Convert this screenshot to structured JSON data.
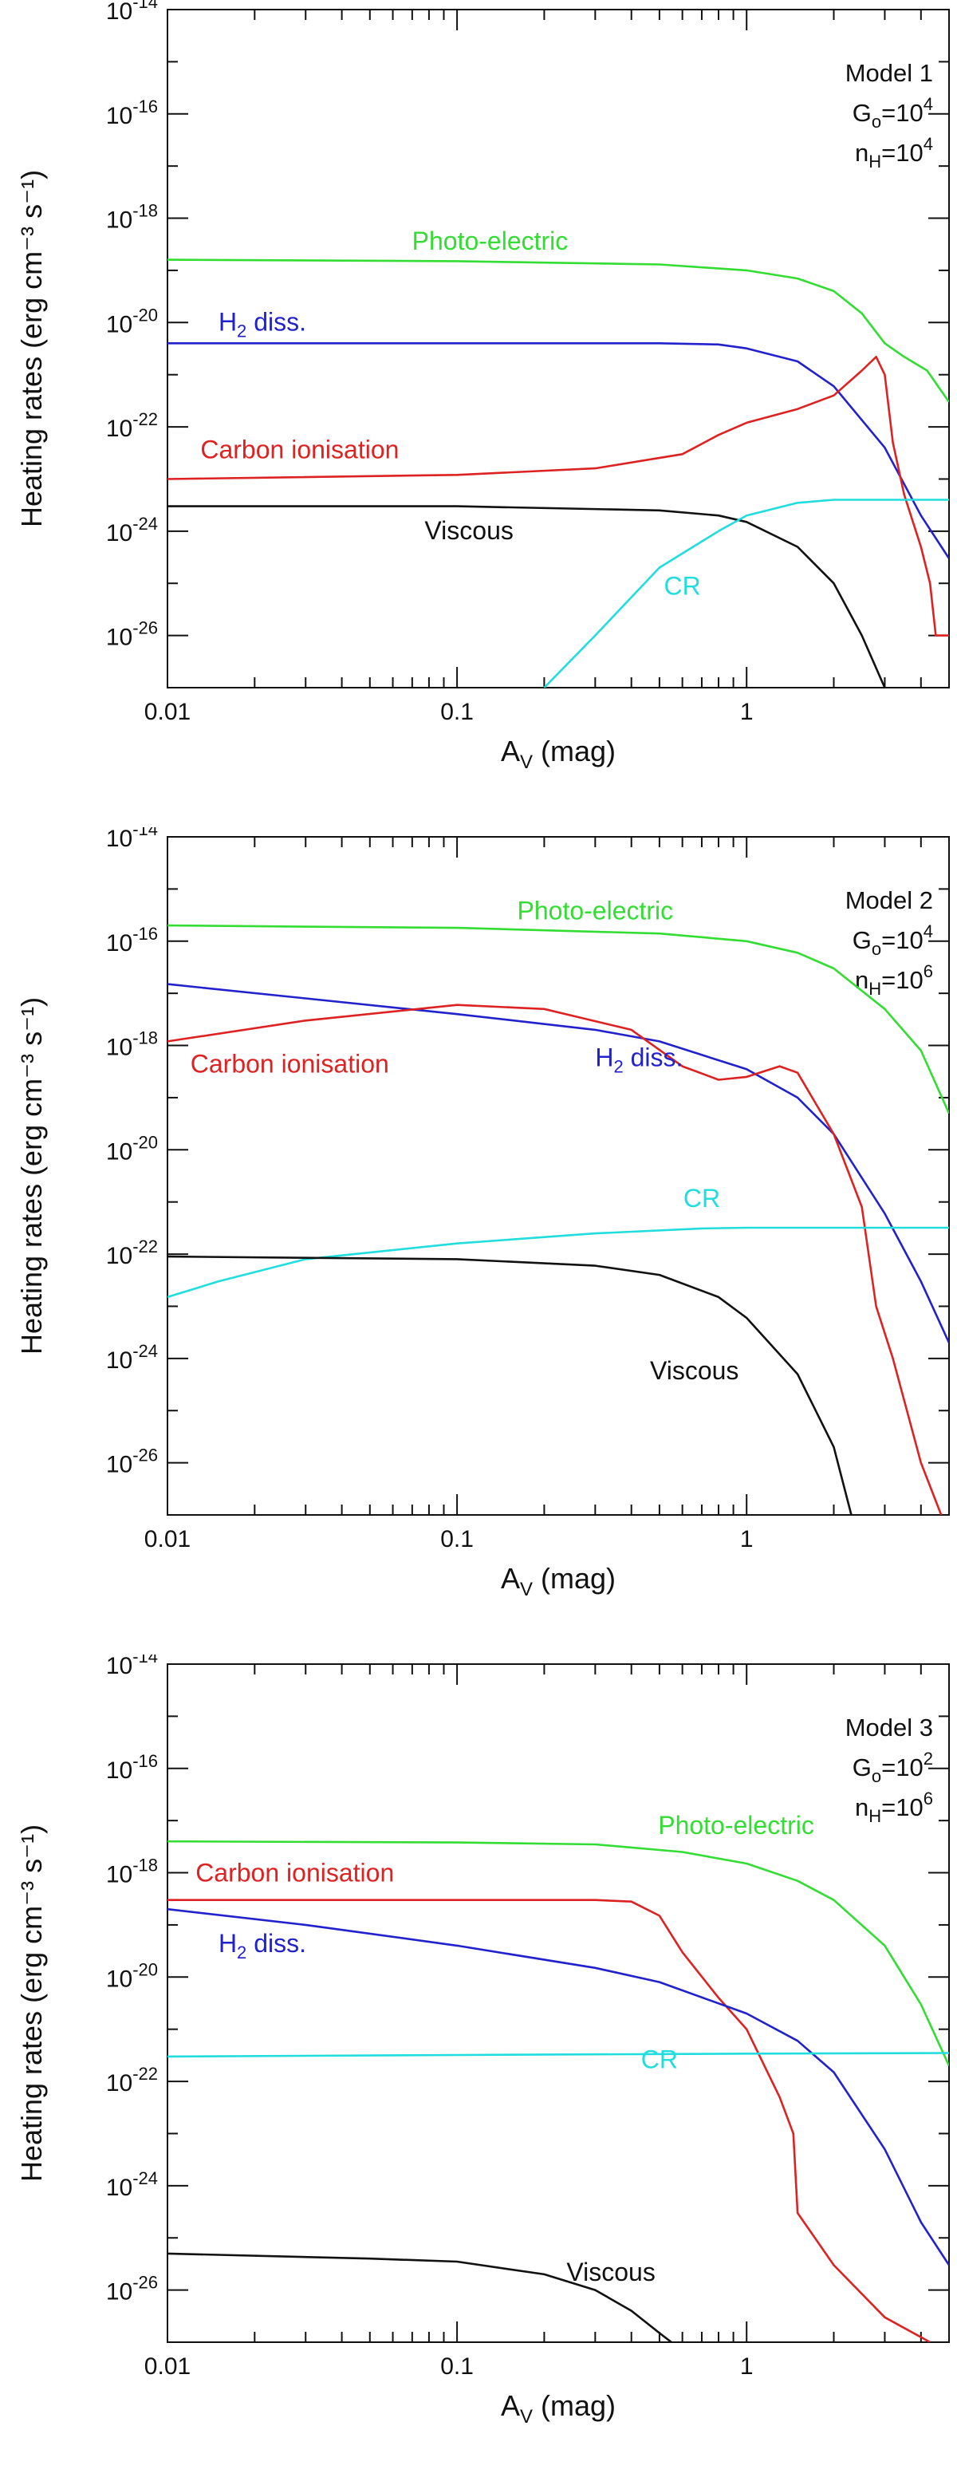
{
  "chart_data": [
    {
      "type": "line",
      "panel": "Model 1",
      "model_label": {
        "name": "Model 1",
        "G_base": "G",
        "G_sub": "o",
        "G_exp": "4",
        "n_base": "n",
        "n_sub": "H",
        "n_exp": "4"
      },
      "xlabel": {
        "base": "A",
        "sub": "V",
        "suffix": " (mag)"
      },
      "ylabel": "Heating rates (erg cm⁻³ s⁻¹)",
      "xscale": "log",
      "yscale": "log",
      "xlim": [
        0.01,
        5
      ],
      "ylim": [
        1e-27,
        1e-14
      ],
      "xticks": [
        {
          "v": 0.01,
          "label": "0.01"
        },
        {
          "v": 0.1,
          "label": "0.1"
        },
        {
          "v": 1,
          "label": "1"
        }
      ],
      "yticks_exp": [
        -14,
        -16,
        -18,
        -20,
        -22,
        -24,
        -26
      ],
      "tick_base": "10",
      "series": [
        {
          "name": "Photo-electric",
          "color": "#33dd33",
          "points": [
            [
              0.01,
              1.6e-19
            ],
            [
              0.1,
              1.5e-19
            ],
            [
              0.5,
              1.3e-19
            ],
            [
              1,
              1e-19
            ],
            [
              1.5,
              7e-20
            ],
            [
              2,
              4e-20
            ],
            [
              2.5,
              1.5e-20
            ],
            [
              3,
              4e-21
            ],
            [
              3.5,
              2.2e-21
            ],
            [
              4.2,
              1.2e-21
            ],
            [
              5,
              3e-22
            ]
          ],
          "label": {
            "text": "Photo-electric",
            "x": 0.13,
            "y": 2.5e-19,
            "anchor": "middle"
          }
        },
        {
          "name": "H2 diss.",
          "color": "#2222cc",
          "points": [
            [
              0.01,
              4e-21
            ],
            [
              0.5,
              4e-21
            ],
            [
              0.8,
              3.8e-21
            ],
            [
              1,
              3.2e-21
            ],
            [
              1.5,
              1.8e-21
            ],
            [
              2,
              6e-22
            ],
            [
              3,
              4e-23
            ],
            [
              4,
              2e-24
            ],
            [
              5,
              3e-25
            ]
          ],
          "label": {
            "text": "H2 diss.",
            "base": "H",
            "sub": "2",
            "suffix": " diss.",
            "x": 0.015,
            "y": 7e-21,
            "anchor": "start"
          }
        },
        {
          "name": "Carbon ionisation",
          "color": "#dd2222",
          "points": [
            [
              0.01,
              1e-23
            ],
            [
              0.1,
              1.2e-23
            ],
            [
              0.3,
              1.6e-23
            ],
            [
              0.6,
              3e-23
            ],
            [
              0.8,
              7e-23
            ],
            [
              1,
              1.2e-22
            ],
            [
              1.5,
              2.2e-22
            ],
            [
              2,
              4e-22
            ],
            [
              2.5,
              1.2e-21
            ],
            [
              2.8,
              2.2e-21
            ],
            [
              3.0,
              1e-21
            ],
            [
              3.2,
              5e-23
            ],
            [
              3.5,
              5e-24
            ],
            [
              4,
              5e-25
            ],
            [
              4.3,
              1e-25
            ],
            [
              4.5,
              1e-26
            ],
            [
              5,
              1e-26
            ]
          ],
          "label": {
            "text": "Carbon ionisation",
            "x": 0.013,
            "y": 2.5e-23,
            "anchor": "start"
          }
        },
        {
          "name": "Viscous",
          "color": "#111111",
          "points": [
            [
              0.01,
              3e-24
            ],
            [
              0.1,
              3e-24
            ],
            [
              0.5,
              2.5e-24
            ],
            [
              0.8,
              2e-24
            ],
            [
              1,
              1.5e-24
            ],
            [
              1.5,
              5e-25
            ],
            [
              2,
              1e-25
            ],
            [
              2.5,
              1e-26
            ],
            [
              3,
              1e-27
            ]
          ],
          "label": {
            "text": "Viscous",
            "x": 0.11,
            "y": 7e-25,
            "anchor": "middle"
          }
        },
        {
          "name": "CR",
          "color": "#22dddd",
          "points": [
            [
              0.2,
              1e-27
            ],
            [
              0.3,
              1e-26
            ],
            [
              0.5,
              2e-25
            ],
            [
              0.8,
              1e-24
            ],
            [
              1,
              2e-24
            ],
            [
              1.5,
              3.5e-24
            ],
            [
              2,
              4e-24
            ],
            [
              3,
              4e-24
            ],
            [
              5,
              4e-24
            ]
          ],
          "label": {
            "text": "CR",
            "x": 0.6,
            "y": 6e-26,
            "anchor": "middle"
          }
        }
      ]
    },
    {
      "type": "line",
      "panel": "Model 2",
      "model_label": {
        "name": "Model 2",
        "G_base": "G",
        "G_sub": "o",
        "G_exp": "4",
        "n_base": "n",
        "n_sub": "H",
        "n_exp": "6"
      },
      "xlabel": {
        "base": "A",
        "sub": "V",
        "suffix": " (mag)"
      },
      "ylabel": "Heating rates (erg cm⁻³ s⁻¹)",
      "xscale": "log",
      "yscale": "log",
      "xlim": [
        0.01,
        5
      ],
      "ylim": [
        1e-27,
        1e-14
      ],
      "xticks": [
        {
          "v": 0.01,
          "label": "0.01"
        },
        {
          "v": 0.1,
          "label": "0.1"
        },
        {
          "v": 1,
          "label": "1"
        }
      ],
      "yticks_exp": [
        -14,
        -16,
        -18,
        -20,
        -22,
        -24,
        -26
      ],
      "tick_base": "10",
      "series": [
        {
          "name": "Photo-electric",
          "color": "#33dd33",
          "points": [
            [
              0.01,
              2e-16
            ],
            [
              0.1,
              1.8e-16
            ],
            [
              0.5,
              1.4e-16
            ],
            [
              1,
              1e-16
            ],
            [
              1.5,
              6e-17
            ],
            [
              2,
              3e-17
            ],
            [
              3,
              5e-18
            ],
            [
              4,
              8e-19
            ],
            [
              5,
              5e-20
            ]
          ],
          "label": {
            "text": "Photo-electric",
            "x": 0.3,
            "y": 2.6e-16,
            "anchor": "middle"
          }
        },
        {
          "name": "H2 diss.",
          "color": "#2222cc",
          "points": [
            [
              0.01,
              1.5e-17
            ],
            [
              0.03,
              8e-18
            ],
            [
              0.1,
              4e-18
            ],
            [
              0.3,
              2e-18
            ],
            [
              0.5,
              1.2e-18
            ],
            [
              1,
              3.5e-19
            ],
            [
              1.5,
              1e-19
            ],
            [
              2,
              2e-20
            ],
            [
              3,
              6e-22
            ],
            [
              4,
              3e-23
            ],
            [
              5,
              2e-24
            ]
          ],
          "label": {
            "text": "H2 diss.",
            "base": "H",
            "sub": "2",
            "suffix": " diss.",
            "x": 0.3,
            "y": 4e-19,
            "anchor": "start"
          }
        },
        {
          "name": "Carbon ionisation",
          "color": "#dd2222",
          "points": [
            [
              0.01,
              1.2e-18
            ],
            [
              0.03,
              3e-18
            ],
            [
              0.1,
              6e-18
            ],
            [
              0.2,
              5e-18
            ],
            [
              0.4,
              2e-18
            ],
            [
              0.6,
              4e-19
            ],
            [
              0.8,
              2.2e-19
            ],
            [
              1.0,
              2.5e-19
            ],
            [
              1.3,
              4e-19
            ],
            [
              1.5,
              3e-19
            ],
            [
              2,
              2e-20
            ],
            [
              2.5,
              8e-22
            ],
            [
              2.8,
              1e-23
            ],
            [
              3.2,
              1e-24
            ],
            [
              4,
              1e-26
            ],
            [
              4.7,
              1e-27
            ]
          ],
          "label": {
            "text": "Carbon ionisation",
            "x": 0.012,
            "y": 3e-19,
            "anchor": "start"
          }
        },
        {
          "name": "CR",
          "color": "#22dddd",
          "points": [
            [
              0.01,
              1.5e-23
            ],
            [
              0.015,
              3e-23
            ],
            [
              0.03,
              8e-23
            ],
            [
              0.1,
              1.6e-22
            ],
            [
              0.3,
              2.5e-22
            ],
            [
              0.7,
              3.1e-22
            ],
            [
              1,
              3.2e-22
            ],
            [
              5,
              3.2e-22
            ]
          ],
          "label": {
            "text": "CR",
            "x": 0.7,
            "y": 8e-22,
            "anchor": "middle"
          }
        },
        {
          "name": "Viscous",
          "color": "#111111",
          "points": [
            [
              0.01,
              9e-23
            ],
            [
              0.1,
              8e-23
            ],
            [
              0.3,
              6e-23
            ],
            [
              0.5,
              4e-23
            ],
            [
              0.8,
              1.5e-23
            ],
            [
              1,
              6e-24
            ],
            [
              1.5,
              5e-25
            ],
            [
              2,
              2e-26
            ],
            [
              2.3,
              1e-27
            ]
          ],
          "label": {
            "text": "Viscous",
            "x": 0.66,
            "y": 4e-25,
            "anchor": "middle"
          }
        }
      ]
    },
    {
      "type": "line",
      "panel": "Model 3",
      "model_label": {
        "name": "Model 3",
        "G_base": "G",
        "G_sub": "o",
        "G_exp": "2",
        "n_base": "n",
        "n_sub": "H",
        "n_exp": "6"
      },
      "xlabel": {
        "base": "A",
        "sub": "V",
        "suffix": " (mag)"
      },
      "ylabel": "Heating rates (erg cm⁻³ s⁻¹)",
      "xscale": "log",
      "yscale": "log",
      "xlim": [
        0.01,
        5
      ],
      "ylim": [
        1e-27,
        1e-14
      ],
      "xticks": [
        {
          "v": 0.01,
          "label": "0.01"
        },
        {
          "v": 0.1,
          "label": "0.1"
        },
        {
          "v": 1,
          "label": "1"
        }
      ],
      "yticks_exp": [
        -14,
        -16,
        -18,
        -20,
        -22,
        -24,
        -26
      ],
      "tick_base": "10",
      "series": [
        {
          "name": "Photo-electric",
          "color": "#33dd33",
          "points": [
            [
              0.01,
              4e-18
            ],
            [
              0.1,
              3.8e-18
            ],
            [
              0.3,
              3.5e-18
            ],
            [
              0.6,
              2.5e-18
            ],
            [
              1,
              1.5e-18
            ],
            [
              1.5,
              7e-19
            ],
            [
              2,
              3e-19
            ],
            [
              3,
              4e-20
            ],
            [
              4,
              3e-21
            ],
            [
              5,
              2e-22
            ]
          ],
          "label": {
            "text": "Photo-electric",
            "x": 0.92,
            "y": 5.5e-18,
            "anchor": "middle"
          }
        },
        {
          "name": "Carbon ionisation",
          "color": "#dd2222",
          "points": [
            [
              0.01,
              3e-19
            ],
            [
              0.1,
              3e-19
            ],
            [
              0.3,
              3e-19
            ],
            [
              0.4,
              2.8e-19
            ],
            [
              0.5,
              1.5e-19
            ],
            [
              0.6,
              3e-20
            ],
            [
              0.8,
              4e-21
            ],
            [
              1,
              1e-21
            ],
            [
              1.3,
              5e-23
            ],
            [
              1.45,
              1e-23
            ],
            [
              1.5,
              3e-25
            ],
            [
              2,
              3e-26
            ],
            [
              3,
              3e-27
            ],
            [
              4.3,
              1e-27
            ]
          ],
          "label": {
            "text": "Carbon ionisation",
            "x": 0.0125,
            "y": 6.8e-19,
            "anchor": "start"
          }
        },
        {
          "name": "H2 diss.",
          "color": "#2222cc",
          "points": [
            [
              0.01,
              2e-19
            ],
            [
              0.03,
              1e-19
            ],
            [
              0.1,
              4e-20
            ],
            [
              0.3,
              1.5e-20
            ],
            [
              0.5,
              8e-21
            ],
            [
              1,
              2e-21
            ],
            [
              1.5,
              6e-22
            ],
            [
              2,
              1.5e-22
            ],
            [
              3,
              5e-24
            ],
            [
              4,
              2e-25
            ],
            [
              5,
              3e-26
            ]
          ],
          "label": {
            "text": "H2 diss.",
            "base": "H",
            "sub": "2",
            "suffix": " diss.",
            "x": 0.015,
            "y": 3e-20,
            "anchor": "start"
          }
        },
        {
          "name": "CR",
          "color": "#22dddd",
          "points": [
            [
              0.01,
              3e-22
            ],
            [
              0.1,
              3.2e-22
            ],
            [
              1,
              3.4e-22
            ],
            [
              5,
              3.5e-22
            ]
          ],
          "label": {
            "text": "CR",
            "x": 0.5,
            "y": 1.8e-22,
            "anchor": "middle"
          }
        },
        {
          "name": "Viscous",
          "color": "#111111",
          "points": [
            [
              0.01,
              5e-26
            ],
            [
              0.05,
              4e-26
            ],
            [
              0.1,
              3.5e-26
            ],
            [
              0.2,
              2e-26
            ],
            [
              0.3,
              1e-26
            ],
            [
              0.4,
              4e-27
            ],
            [
              0.5,
              1.5e-27
            ],
            [
              0.55,
              1e-27
            ]
          ],
          "label": {
            "text": "Viscous",
            "x": 0.34,
            "y": 1.5e-26,
            "anchor": "middle"
          }
        }
      ]
    }
  ]
}
